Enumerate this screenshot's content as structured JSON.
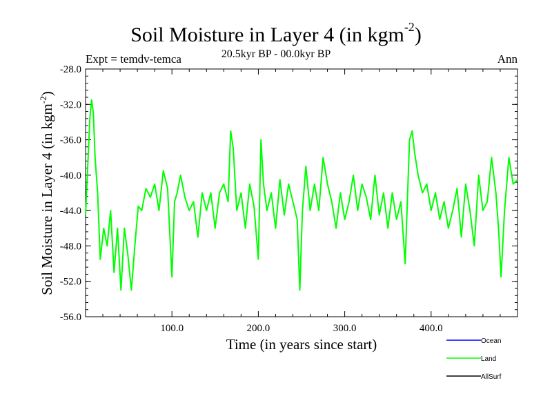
{
  "chart_data": {
    "type": "line",
    "title": "Soil Moisture in Layer 4 (in kgm",
    "title_exponent": "-2",
    "title_close": ")",
    "subtitle": "20.5kyr BP - 00.0kyr BP",
    "expt_label": "Expt = temdv-temca",
    "season_label": "Ann",
    "xlabel": "Time (in years since start)",
    "ylabel": "Soil Moisture in Layer 4 (in kgm",
    "ylabel_exponent": "-2",
    "ylabel_close": ")",
    "xlim": [
      0,
      500
    ],
    "ylim": [
      -56.0,
      -28.0
    ],
    "x_ticks": [
      100,
      200,
      300,
      400
    ],
    "x_tick_labels": [
      "100.0",
      "200.0",
      "300.0",
      "400.0"
    ],
    "y_ticks": [
      -56,
      -52,
      -48,
      -44,
      -40,
      -36,
      -32,
      -28
    ],
    "y_tick_labels": [
      "-56.0",
      "-52.0",
      "-48.0",
      "-44.0",
      "-40.0",
      "-36.0",
      "-32.0",
      "-28.0"
    ],
    "grid": false,
    "legend_position": "bottom-right",
    "legend": [
      {
        "name": "Ocean",
        "color": "#0000ff"
      },
      {
        "name": "Land",
        "color": "#00ff00"
      },
      {
        "name": "AllSurf",
        "color": "#000000"
      }
    ],
    "series": [
      {
        "name": "Land",
        "color": "#00ff00",
        "x": [
          0,
          5,
          7,
          9,
          11,
          14,
          17,
          21,
          25,
          29,
          33,
          37,
          41,
          45,
          49,
          53,
          57,
          61,
          65,
          70,
          75,
          80,
          85,
          90,
          95,
          100,
          103,
          106,
          110,
          115,
          120,
          125,
          130,
          135,
          140,
          145,
          150,
          155,
          160,
          165,
          168,
          171,
          175,
          180,
          185,
          190,
          195,
          200,
          203,
          206,
          210,
          215,
          220,
          225,
          230,
          235,
          240,
          245,
          248,
          251,
          255,
          260,
          265,
          270,
          275,
          280,
          285,
          290,
          295,
          300,
          305,
          310,
          315,
          320,
          325,
          330,
          335,
          340,
          345,
          350,
          355,
          360,
          365,
          370,
          375,
          378,
          381,
          385,
          390,
          395,
          400,
          405,
          410,
          415,
          420,
          425,
          430,
          435,
          440,
          445,
          450,
          455,
          460,
          465,
          470,
          475,
          478,
          481,
          485,
          490,
          495,
          500
        ],
        "values": [
          -44.5,
          -33.5,
          -31.5,
          -33.0,
          -38.0,
          -42.0,
          -49.5,
          -46.0,
          -48.0,
          -44.0,
          -51.0,
          -46.0,
          -53.0,
          -46.0,
          -49.0,
          -53.0,
          -48.0,
          -43.5,
          -44.0,
          -41.5,
          -42.5,
          -41.0,
          -44.0,
          -39.5,
          -41.5,
          -51.5,
          -43.0,
          -42.0,
          -40.0,
          -42.5,
          -44.0,
          -43.0,
          -47.0,
          -42.0,
          -44.0,
          -42.0,
          -46.0,
          -42.0,
          -41.0,
          -43.0,
          -35.0,
          -37.0,
          -44.0,
          -42.0,
          -46.0,
          -41.0,
          -43.5,
          -49.5,
          -36.0,
          -41.0,
          -44.0,
          -42.0,
          -46.0,
          -40.5,
          -44.5,
          -41.0,
          -43.0,
          -45.0,
          -53.0,
          -44.0,
          -39.0,
          -44.0,
          -41.0,
          -44.0,
          -38.0,
          -41.0,
          -43.0,
          -46.0,
          -42.0,
          -45.0,
          -43.0,
          -40.0,
          -44.0,
          -41.0,
          -42.5,
          -45.0,
          -40.0,
          -44.5,
          -42.0,
          -46.0,
          -42.0,
          -45.0,
          -43.0,
          -50.0,
          -36.0,
          -35.0,
          -37.5,
          -40.0,
          -42.0,
          -41.0,
          -44.0,
          -42.0,
          -45.0,
          -43.0,
          -46.0,
          -44.0,
          -41.5,
          -47.0,
          -41.0,
          -44.0,
          -48.0,
          -40.0,
          -44.0,
          -43.0,
          -38.0,
          -42.0,
          -46.0,
          -51.5,
          -44.0,
          -38.0,
          -41.0,
          -40.5
        ]
      }
    ]
  }
}
